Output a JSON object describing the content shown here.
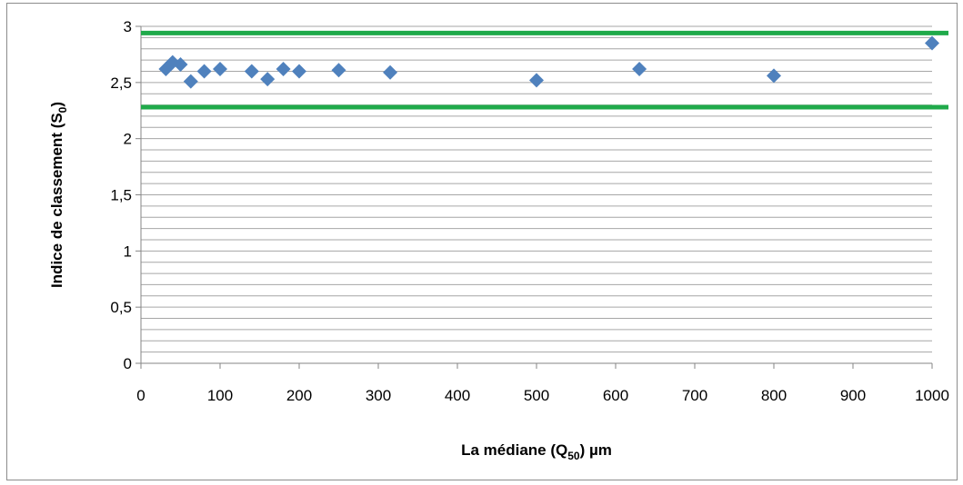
{
  "chart_data": {
    "type": "scatter",
    "title": "",
    "xlabel": {
      "main": "La médiane  (Q",
      "sub": "50",
      "tail": ")  µm"
    },
    "ylabel": {
      "main": "Indice de classement  (S",
      "sub": "0",
      "tail": ")"
    },
    "xlim": [
      0,
      1000
    ],
    "ylim": [
      0,
      3
    ],
    "x_ticks": [
      0,
      100,
      200,
      300,
      400,
      500,
      600,
      700,
      800,
      900,
      1000
    ],
    "y_ticks": [
      0,
      0.5,
      1,
      1.5,
      2,
      2.5,
      3
    ],
    "x_tick_labels": [
      "0",
      "100",
      "200",
      "300",
      "400",
      "500",
      "600",
      "700",
      "800",
      "900",
      "1000"
    ],
    "y_tick_labels": [
      "0",
      "0,5",
      "1",
      "1,5",
      "2",
      "2,5",
      "3"
    ],
    "y_minor_step": 0.1,
    "grid": true,
    "legend": "none",
    "series": [
      {
        "marker": "diamond",
        "color": "#4f81bd",
        "points": [
          {
            "x": 31.5,
            "y": 2.62
          },
          {
            "x": 40,
            "y": 2.68
          },
          {
            "x": 50,
            "y": 2.66
          },
          {
            "x": 63,
            "y": 2.51
          },
          {
            "x": 80,
            "y": 2.6
          },
          {
            "x": 100,
            "y": 2.62
          },
          {
            "x": 140,
            "y": 2.6
          },
          {
            "x": 160,
            "y": 2.53
          },
          {
            "x": 180,
            "y": 2.62
          },
          {
            "x": 200,
            "y": 2.6
          },
          {
            "x": 250,
            "y": 2.61
          },
          {
            "x": 315,
            "y": 2.59
          },
          {
            "x": 500,
            "y": 2.52
          },
          {
            "x": 630,
            "y": 2.62
          },
          {
            "x": 800,
            "y": 2.56
          },
          {
            "x": 1000,
            "y": 2.85
          }
        ]
      }
    ],
    "reference_lines": [
      {
        "y": 2.94,
        "color": "#1faa4a"
      },
      {
        "y": 2.28,
        "color": "#1faa4a"
      }
    ]
  }
}
